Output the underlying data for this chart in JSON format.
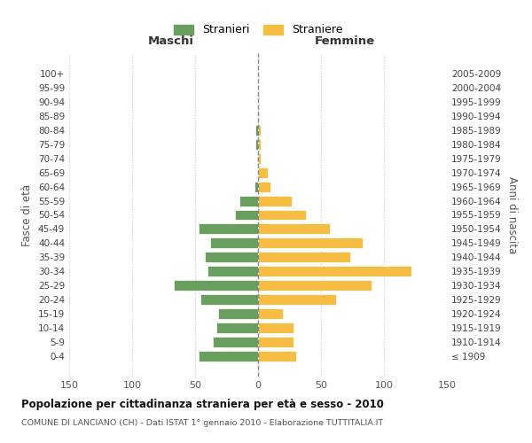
{
  "age_groups": [
    "100+",
    "95-99",
    "90-94",
    "85-89",
    "80-84",
    "75-79",
    "70-74",
    "65-69",
    "60-64",
    "55-59",
    "50-54",
    "45-49",
    "40-44",
    "35-39",
    "30-34",
    "25-29",
    "20-24",
    "15-19",
    "10-14",
    "5-9",
    "0-4"
  ],
  "birth_years": [
    "≤ 1909",
    "1910-1914",
    "1915-1919",
    "1920-1924",
    "1925-1929",
    "1930-1934",
    "1935-1939",
    "1940-1944",
    "1945-1949",
    "1950-1954",
    "1955-1959",
    "1960-1964",
    "1965-1969",
    "1970-1974",
    "1975-1979",
    "1980-1984",
    "1985-1989",
    "1990-1994",
    "1995-1999",
    "2000-2004",
    "2005-2009"
  ],
  "maschi": [
    0,
    0,
    0,
    0,
    2,
    2,
    1,
    0,
    3,
    15,
    18,
    47,
    38,
    42,
    40,
    67,
    46,
    32,
    33,
    36,
    47
  ],
  "femmine": [
    0,
    0,
    0,
    0,
    2,
    2,
    2,
    8,
    10,
    27,
    38,
    57,
    83,
    73,
    122,
    90,
    62,
    20,
    28,
    28,
    30
  ],
  "male_color": "#6a9e5e",
  "female_color": "#f5be42",
  "background_color": "#ffffff",
  "grid_color": "#c8c8c8",
  "center_line_color": "#888888",
  "title": "Popolazione per cittadinanza straniera per età e sesso - 2010",
  "subtitle": "COMUNE DI LANCIANO (CH) - Dati ISTAT 1° gennaio 2010 - Elaborazione TUTTITALIA.IT",
  "xlabel_left": "Maschi",
  "xlabel_right": "Femmine",
  "ylabel_left": "Fasce di età",
  "ylabel_right": "Anni di nascita",
  "legend_stranieri": "Stranieri",
  "legend_straniere": "Straniere",
  "xlim": 150,
  "xticks": [
    -150,
    -100,
    -50,
    0,
    50,
    100,
    150
  ],
  "xticklabels": [
    "150",
    "100",
    "50",
    "0",
    "50",
    "100",
    "150"
  ]
}
